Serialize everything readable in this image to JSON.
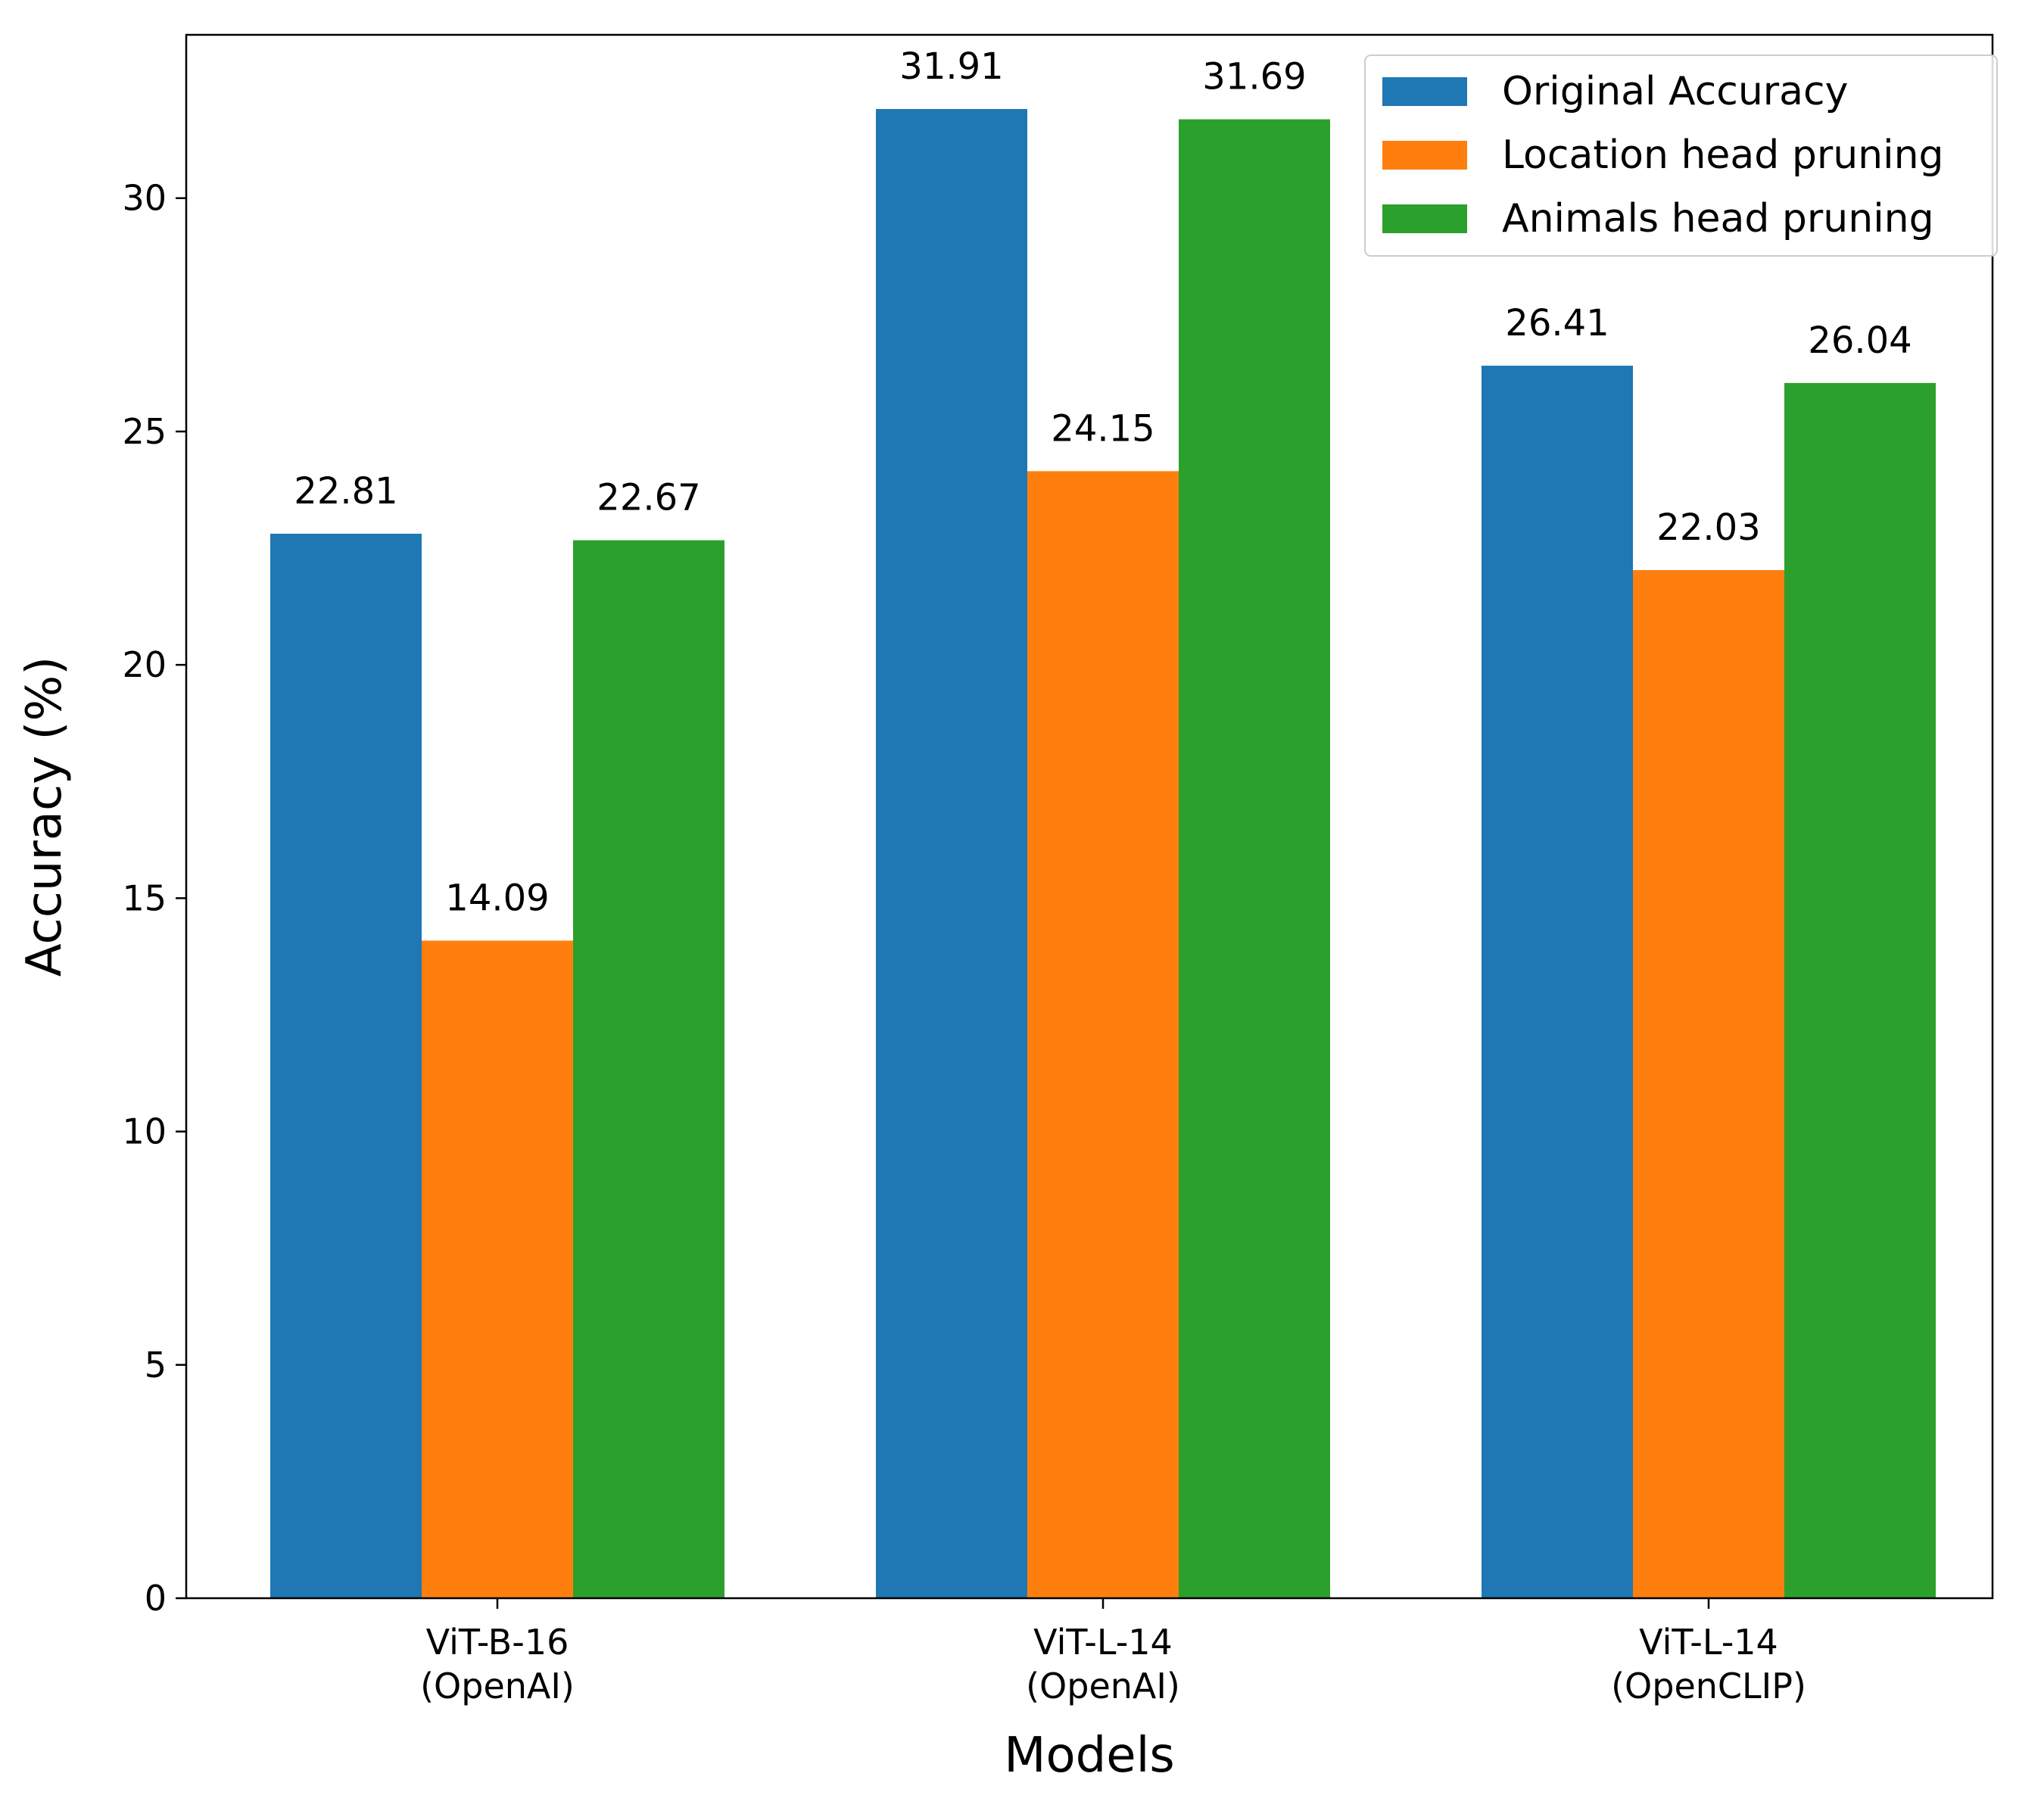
{
  "chart_data": {
    "type": "bar",
    "title": "",
    "xlabel": "Models",
    "ylabel": "Accuracy (%)",
    "ylim": [
      0,
      33.5
    ],
    "yticks": [
      0,
      5,
      10,
      15,
      20,
      25,
      30
    ],
    "categories": [
      [
        "ViT-B-16",
        "(OpenAI)"
      ],
      [
        "ViT-L-14",
        "(OpenAI)"
      ],
      [
        "ViT-L-14",
        "(OpenCLIP)"
      ]
    ],
    "series": [
      {
        "name": "Original Accuracy",
        "color": "#1f77b4",
        "values": [
          22.81,
          31.91,
          26.41
        ]
      },
      {
        "name": "Location head pruning",
        "color": "#ff7f0e",
        "values": [
          14.09,
          24.15,
          22.03
        ]
      },
      {
        "name": "Animals head pruning",
        "color": "#2ca02c",
        "values": [
          22.67,
          31.69,
          26.04
        ]
      }
    ],
    "data_labels": true,
    "legend_position": "top-right",
    "grid": false
  }
}
